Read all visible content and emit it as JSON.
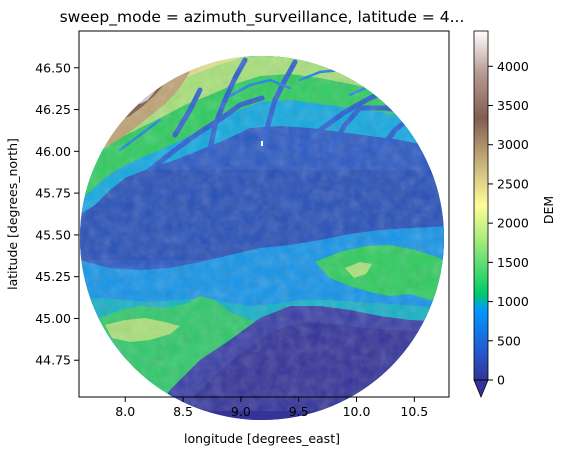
{
  "chart_data": {
    "type": "heatmap",
    "title": "sweep_mode = azimuth_surveillance, latitude = 4...",
    "xlabel": "longitude [degrees_east]",
    "ylabel": "latitude [degrees_north]",
    "xlim": [
      7.6,
      10.8
    ],
    "ylim": [
      44.53,
      46.72
    ],
    "xticks": [
      "8.0",
      "8.5",
      "9.0",
      "9.5",
      "10.0",
      "10.5"
    ],
    "xtick_values": [
      8.0,
      8.5,
      9.0,
      9.5,
      10.0,
      10.5
    ],
    "yticks": [
      "44.75",
      "45.00",
      "45.25",
      "45.50",
      "45.75",
      "46.00",
      "46.25",
      "46.50"
    ],
    "ytick_values": [
      44.75,
      45.0,
      45.25,
      45.5,
      45.75,
      46.0,
      46.25,
      46.5
    ],
    "colorbar": {
      "label": "DEM",
      "min": 0,
      "max": 4450,
      "extend": "min",
      "colormap": "terrain",
      "ticks": [
        "0",
        "500",
        "1000",
        "1500",
        "2000",
        "2500",
        "3000",
        "3500",
        "4000"
      ],
      "tick_values": [
        0,
        500,
        1000,
        1500,
        2000,
        2500,
        3000,
        3500,
        4000
      ]
    },
    "footprint": {
      "shape": "circle",
      "center_lon": 9.25,
      "center_lat": 45.6,
      "note": ""
    },
    "regions": [
      {
        "name": "",
        "lon": [
          7.9,
          9.2
        ],
        "lat": [
          46.0,
          46.7
        ],
        "dem_range": [
          1500,
          4200
        ]
      },
      {
        "name": "",
        "lon": [
          9.2,
          10.5
        ],
        "lat": [
          46.1,
          46.7
        ],
        "dem_range": [
          1000,
          2600
        ]
      },
      {
        "name": "",
        "lon": [
          7.6,
          10.8
        ],
        "lat": [
          45.4,
          46.0
        ],
        "dem_range": [
          0,
          400
        ]
      },
      {
        "name": "",
        "lon": [
          9.7,
          10.6
        ],
        "lat": [
          45.05,
          45.35
        ],
        "dem_range": [
          600,
          1800
        ]
      },
      {
        "name": "",
        "lon": [
          8.0,
          9.2
        ],
        "lat": [
          44.65,
          45.1
        ],
        "dem_range": [
          300,
          1500
        ]
      },
      {
        "name": "",
        "lon": [
          9.0,
          10.2
        ],
        "lat": [
          44.53,
          45.05
        ],
        "dem_range": [
          0,
          150
        ]
      }
    ]
  }
}
